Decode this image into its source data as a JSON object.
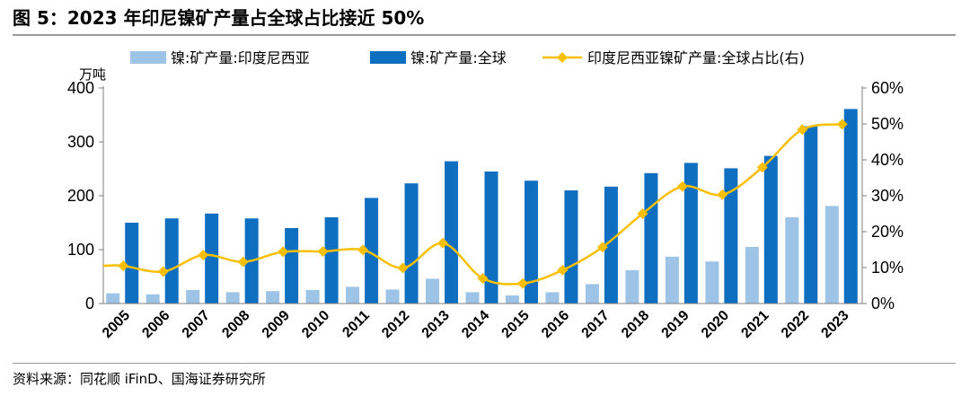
{
  "header": {
    "title": "图 5：2023 年印尼镍矿产量占全球占比接近 50%"
  },
  "footer": {
    "source": "资料来源：同花顺 iFinD、国海证券研究所"
  },
  "chart_data": {
    "type": "bar",
    "title": "2023 年印尼镍矿产量占全球占比接近 50%",
    "left_unit": "万吨",
    "categories": [
      "2005",
      "2006",
      "2007",
      "2008",
      "2009",
      "2010",
      "2011",
      "2012",
      "2013",
      "2014",
      "2015",
      "2016",
      "2017",
      "2018",
      "2019",
      "2020",
      "2021",
      "2022",
      "2023"
    ],
    "y_left": {
      "ylim": [
        0,
        400
      ],
      "ticks": [
        0,
        100,
        200,
        300,
        400
      ],
      "tick_labels": [
        "0",
        "100",
        "200",
        "300",
        "400"
      ]
    },
    "y_right": {
      "ylim": [
        0,
        60
      ],
      "ticks": [
        0,
        10,
        20,
        30,
        40,
        50,
        60
      ],
      "tick_labels": [
        "0%",
        "10%",
        "20%",
        "30%",
        "40%",
        "50%",
        "60%"
      ]
    },
    "series": [
      {
        "name": "镍:矿产量:印度尼西亚",
        "kind": "bar",
        "axis": "left",
        "color": "#9dc3e6",
        "values": [
          19,
          17,
          25,
          21,
          23,
          25,
          31,
          26,
          46,
          21,
          15,
          21,
          36,
          62,
          87,
          78,
          105,
          160,
          181
        ]
      },
      {
        "name": "镍:矿产量:全球",
        "kind": "bar",
        "axis": "left",
        "color": "#0e6fc1",
        "values": [
          150,
          158,
          167,
          158,
          140,
          160,
          196,
          223,
          264,
          245,
          228,
          210,
          217,
          242,
          261,
          251,
          274,
          329,
          361
        ]
      },
      {
        "name": "印度尼西亚镍矿产量:全球占比(右)",
        "kind": "line",
        "axis": "right",
        "color": "#f9bf00",
        "values": [
          10.5,
          8.9,
          13.5,
          11.6,
          14.4,
          14.5,
          14.9,
          9.9,
          16.8,
          7.0,
          5.6,
          9.3,
          15.7,
          25.0,
          32.6,
          30.3,
          37.9,
          48.4,
          49.9
        ]
      }
    ]
  }
}
